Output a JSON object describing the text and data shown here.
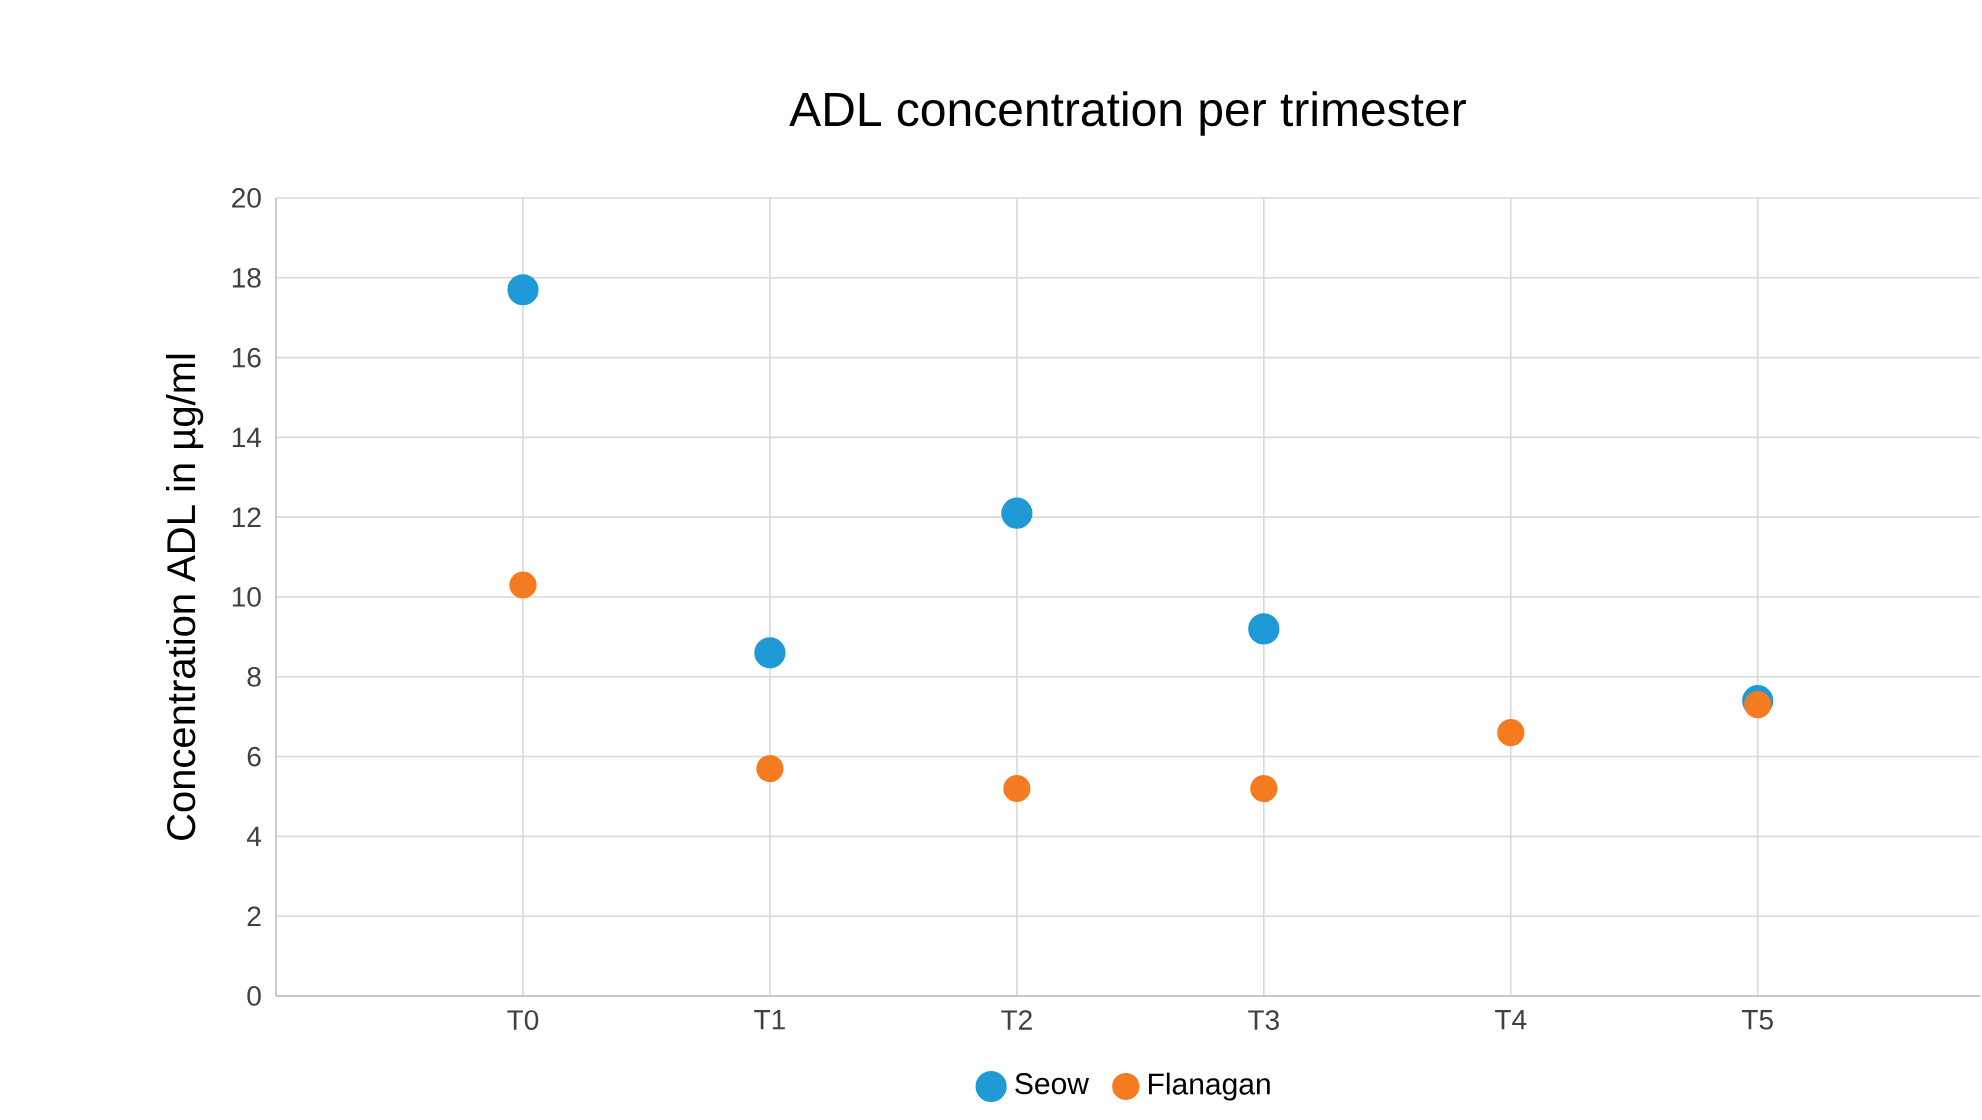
{
  "chart_data": {
    "type": "scatter",
    "title": "ADL concentration per trimester",
    "ylabel": "Concentration ADL in µg/ml",
    "categories": [
      "T0",
      "T1",
      "T2",
      "T3",
      "T4",
      "T5"
    ],
    "series": [
      {
        "name": "Seow",
        "color": "#1f9ad6",
        "values": [
          17.7,
          8.6,
          12.1,
          9.2,
          null,
          7.4
        ]
      },
      {
        "name": "Flanagan",
        "color": "#f47b20",
        "values": [
          10.3,
          5.7,
          5.2,
          5.2,
          6.6,
          7.3
        ]
      }
    ],
    "ylim": [
      0,
      20
    ],
    "yticks": [
      0,
      2,
      4,
      6,
      8,
      10,
      12,
      14,
      16,
      18,
      20
    ],
    "grid": true,
    "legend": "bottom",
    "marker": "circle"
  }
}
